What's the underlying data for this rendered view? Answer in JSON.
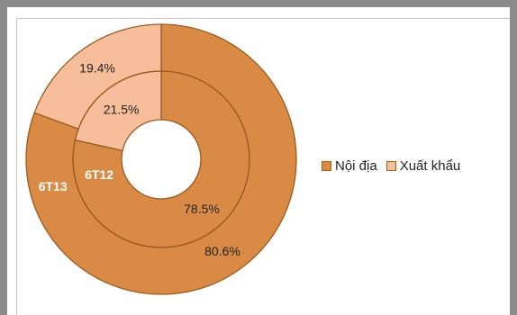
{
  "chart_data": {
    "type": "pie",
    "title": "",
    "rings": [
      {
        "name": "6T12",
        "position": "inner",
        "values": [
          {
            "category": "Nội địa",
            "value": 78.5,
            "label": "78.5%"
          },
          {
            "category": "Xuất khẩu",
            "value": 21.5,
            "label": "21.5%"
          }
        ]
      },
      {
        "name": "6T13",
        "position": "outer",
        "values": [
          {
            "category": "Nội địa",
            "value": 80.6,
            "label": "80.6%"
          },
          {
            "category": "Xuất khẩu",
            "value": 19.4,
            "label": "19.4%"
          }
        ]
      }
    ],
    "legend": {
      "placement": "right",
      "entries": [
        {
          "label": "Nội địa",
          "color": "#d98b45"
        },
        {
          "label": "Xuất khẩu",
          "color": "#f6be9a"
        }
      ]
    }
  }
}
